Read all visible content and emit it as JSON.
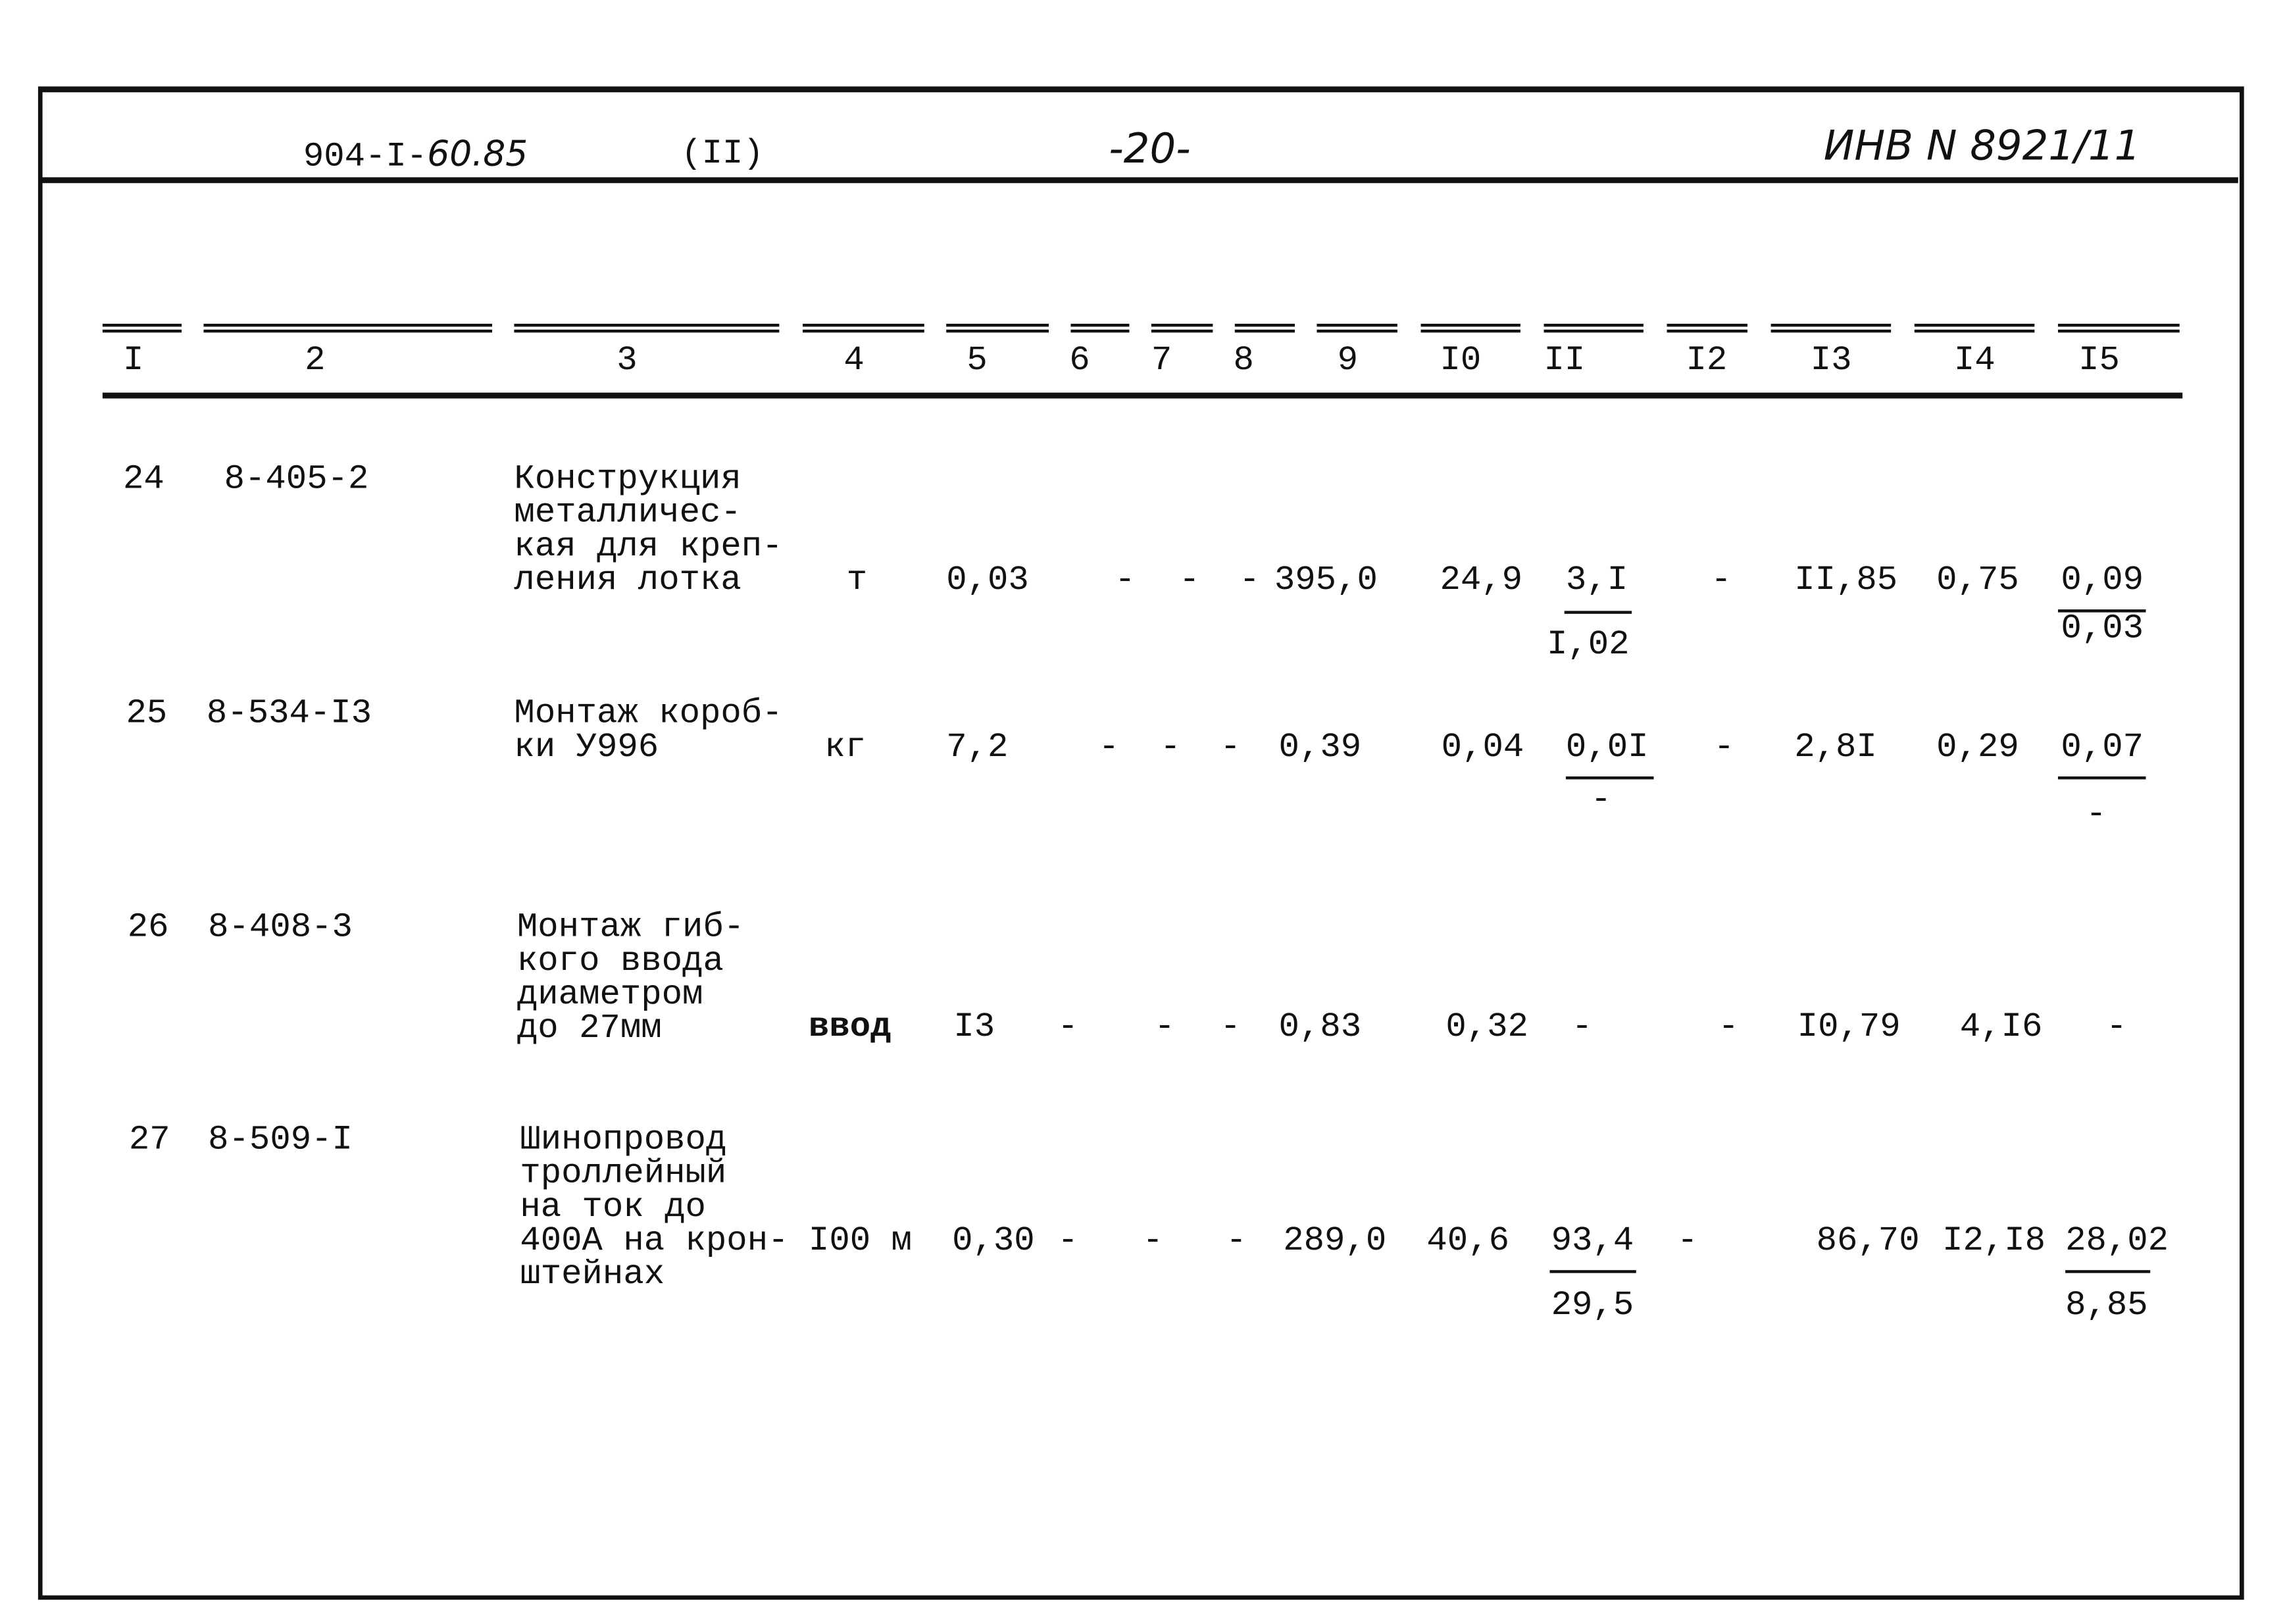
{
  "header": {
    "doc_code": "904-I-",
    "doc_code_handwritten": "60.85",
    "part": "(II)",
    "page": "-20-",
    "inventory": "ИНВ N 8921/11"
  },
  "columns": [
    "I",
    "2",
    "3",
    "4",
    "5",
    "6",
    "7",
    "8",
    "9",
    "I0",
    "II",
    "I2",
    "I3",
    "I4",
    "I5"
  ],
  "rows": [
    {
      "no": "24",
      "code": "8-405-2",
      "desc": "Конструкция\nметалличес-\nкая для креп-\nления лотка",
      "unit": "т",
      "c5": "0,03",
      "c6": "-",
      "c7": "-",
      "c8": "-",
      "c9": "395,0",
      "c10": "24,9",
      "c11_top": "3,I",
      "c11_bottom": "I,02",
      "c12": "-",
      "c13": "II,85",
      "c14": "0,75",
      "c15_top": "0,09",
      "c15_bottom": "0,03"
    },
    {
      "no": "25",
      "code": "8-534-I3",
      "desc": "Монтаж короб-\nки У996",
      "unit": "кг",
      "c5": "7,2",
      "c6": "-",
      "c7": "-",
      "c8": "-",
      "c9": "0,39",
      "c10": "0,04",
      "c11_top": "0,0I",
      "c11_bottom": "-",
      "c12": "-",
      "c13": "2,8I",
      "c14": "0,29",
      "c15_top": "0,07",
      "c15_bottom": "-"
    },
    {
      "no": "26",
      "code": "8-408-3",
      "desc": "Монтаж гиб-\nкого ввода\nдиаметром\nдо 27мм",
      "unit": "ввод",
      "c5": "I3",
      "c6": "-",
      "c7": "-",
      "c8": "-",
      "c9": "0,83",
      "c10": "0,32",
      "c11": "-",
      "c12": "-",
      "c13": "I0,79",
      "c14": "4,I6",
      "c15": "-"
    },
    {
      "no": "27",
      "code": "8-509-I",
      "desc": "Шинопровод\nтроллейный\nна ток до\n400А на крон-\nштейнах",
      "unit": "I00 м",
      "c5": "0,30",
      "c6": "-",
      "c7": "-",
      "c8": "-",
      "c9": "289,0",
      "c10": "40,6",
      "c11_top": "93,4",
      "c11_bottom": "29,5",
      "c12": "-",
      "c13": "86,70",
      "c14": "I2,I8",
      "c15_top": "28,02",
      "c15_bottom": "8,85"
    }
  ]
}
